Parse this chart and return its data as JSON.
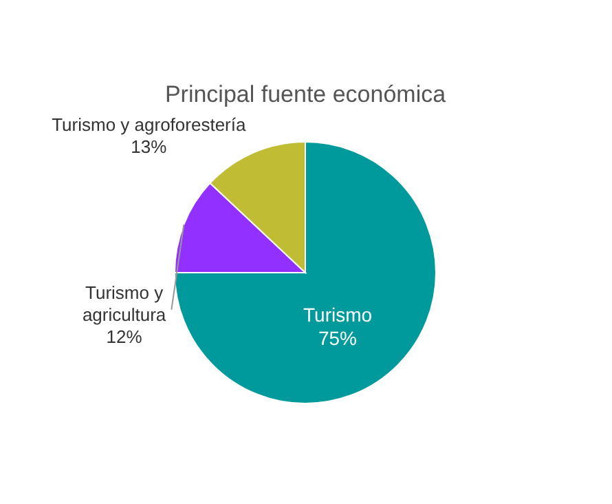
{
  "chart_data": {
    "type": "pie",
    "title": "Principal fuente económica",
    "categories": [
      "Turismo",
      "Turismo y agricultura",
      "Turismo y agroforestería"
    ],
    "values": [
      75,
      12,
      13
    ],
    "value_labels": [
      "75%",
      "12%",
      "13%"
    ],
    "colors": [
      "#009a9c",
      "#9130ff",
      "#c0bd35"
    ]
  }
}
